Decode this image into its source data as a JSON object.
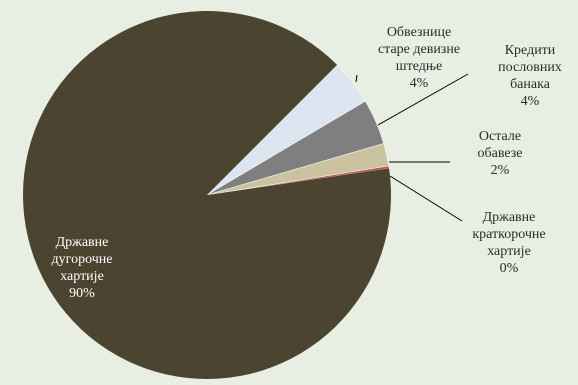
{
  "chart_data": {
    "type": "pie",
    "title": "",
    "slices": [
      {
        "label_lines": [
          "Државне",
          "дугорочне",
          "хартије",
          "90%"
        ],
        "value": 90,
        "color": "#4a4430"
      },
      {
        "label_lines": [
          "Обвезнице",
          "старе девизне",
          "штедње",
          "4%"
        ],
        "value": 4,
        "color": "#dde6f0"
      },
      {
        "label_lines": [
          "Кредити",
          "пословних",
          "банака",
          "4%"
        ],
        "value": 4,
        "color": "#7f7f7f"
      },
      {
        "label_lines": [
          "Остале",
          "обавезе",
          "2%"
        ],
        "value": 2,
        "color": "#cbc39f"
      },
      {
        "label_lines": [
          "Државне",
          "краткорочне",
          "хартије",
          "0%"
        ],
        "value": 0.2,
        "color": "#c0504d"
      }
    ],
    "legend": "none",
    "data_labels": "category, percentage"
  }
}
